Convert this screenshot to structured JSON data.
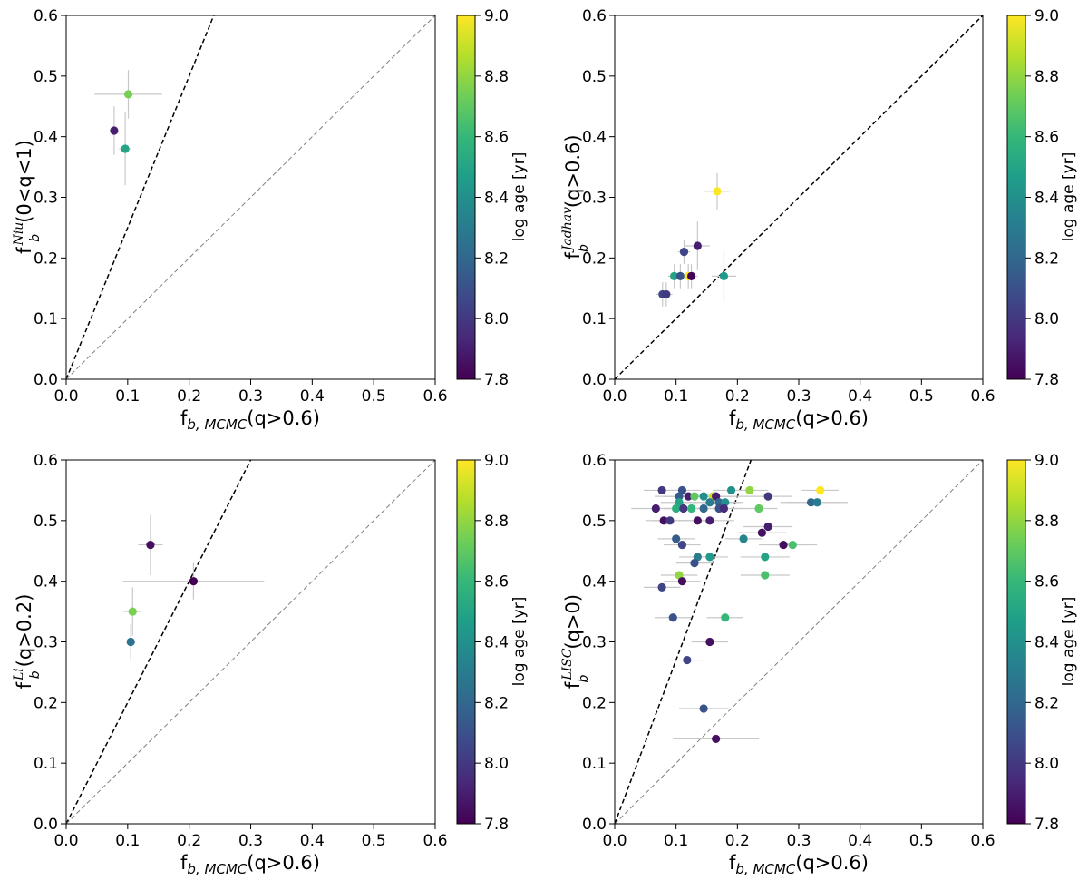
{
  "colorscale": [
    "#440154",
    "#482878",
    "#3e4989",
    "#31688e",
    "#26828e",
    "#1f9e89",
    "#35b779",
    "#6ece58",
    "#b5de2b",
    "#fde725"
  ],
  "chart_data": [
    {
      "type": "scatter",
      "id": "niu",
      "ylabel_base": "f",
      "ylabel_sup": "Niu",
      "ylabel_sub": "b",
      "ylabel_cond": "(0<q<1)",
      "xlabel_base": "f",
      "xlabel_sub": "b, MCMC",
      "xlabel_cond": "(q>0.6)",
      "xlim": [
        0,
        0.6
      ],
      "ylim": [
        0,
        0.6
      ],
      "xticks": [
        "0.0",
        "0.1",
        "0.2",
        "0.3",
        "0.4",
        "0.5",
        "0.6"
      ],
      "yticks": [
        "0.0",
        "0.1",
        "0.2",
        "0.3",
        "0.4",
        "0.5",
        "0.6"
      ],
      "lines": [
        {
          "slope": 2.5,
          "color": "#000000",
          "style": "dashed"
        },
        {
          "slope": 1.0,
          "color": "#808080",
          "style": "dashed"
        }
      ],
      "colorbar": {
        "label": "log age [yr]",
        "range": [
          7.8,
          9.0
        ],
        "ticks": [
          "7.8",
          "8.0",
          "8.2",
          "8.4",
          "8.6",
          "8.8",
          "9.0"
        ]
      },
      "points": [
        {
          "x": 0.078,
          "y": 0.41,
          "xerr": 0.005,
          "yerr": 0.04,
          "c": 7.9
        },
        {
          "x": 0.101,
          "y": 0.47,
          "xerr": 0.055,
          "yerr": 0.04,
          "c": 8.75
        },
        {
          "x": 0.096,
          "y": 0.38,
          "xerr": 0.01,
          "yerr": 0.06,
          "c": 8.5
        }
      ]
    },
    {
      "type": "scatter",
      "id": "jadhav",
      "ylabel_base": "f",
      "ylabel_sup": "Jadhav",
      "ylabel_sub": "b",
      "ylabel_cond": "(q>0.6)",
      "xlabel_base": "f",
      "xlabel_sub": "b, MCMC",
      "xlabel_cond": "(q>0.6)",
      "xlim": [
        0,
        0.6
      ],
      "ylim": [
        0,
        0.6
      ],
      "xticks": [
        "0.0",
        "0.1",
        "0.2",
        "0.3",
        "0.4",
        "0.5",
        "0.6"
      ],
      "yticks": [
        "0.0",
        "0.1",
        "0.2",
        "0.3",
        "0.4",
        "0.5",
        "0.6"
      ],
      "lines": [
        {
          "slope": 1.0,
          "color": "#000000",
          "style": "dashed"
        }
      ],
      "colorbar": {
        "label": "log age [yr]",
        "range": [
          7.8,
          9.0
        ],
        "ticks": [
          "7.8",
          "8.0",
          "8.2",
          "8.4",
          "8.6",
          "8.8",
          "9.0"
        ]
      },
      "points": [
        {
          "x": 0.167,
          "y": 0.31,
          "xerr": 0.02,
          "yerr": 0.03,
          "c": 9.0
        },
        {
          "x": 0.135,
          "y": 0.22,
          "xerr": 0.02,
          "yerr": 0.04,
          "c": 7.9
        },
        {
          "x": 0.113,
          "y": 0.21,
          "xerr": 0.01,
          "yerr": 0.02,
          "c": 8.05
        },
        {
          "x": 0.097,
          "y": 0.17,
          "xerr": 0.01,
          "yerr": 0.02,
          "c": 8.5
        },
        {
          "x": 0.107,
          "y": 0.17,
          "xerr": 0.01,
          "yerr": 0.02,
          "c": 8.1
        },
        {
          "x": 0.12,
          "y": 0.17,
          "xerr": 0.01,
          "yerr": 0.02,
          "c": 9.0
        },
        {
          "x": 0.125,
          "y": 0.17,
          "xerr": 0.01,
          "yerr": 0.02,
          "c": 7.8
        },
        {
          "x": 0.178,
          "y": 0.17,
          "xerr": 0.02,
          "yerr": 0.04,
          "c": 8.45
        },
        {
          "x": 0.078,
          "y": 0.14,
          "xerr": 0.01,
          "yerr": 0.02,
          "c": 8.05
        },
        {
          "x": 0.084,
          "y": 0.14,
          "xerr": 0.01,
          "yerr": 0.02,
          "c": 8.0
        }
      ]
    },
    {
      "type": "scatter",
      "id": "li",
      "ylabel_base": "f",
      "ylabel_sup": "Li",
      "ylabel_sub": "b",
      "ylabel_cond": "(q>0.2)",
      "xlabel_base": "f",
      "xlabel_sub": "b, MCMC",
      "xlabel_cond": "(q>0.6)",
      "xlim": [
        0,
        0.6
      ],
      "ylim": [
        0,
        0.6
      ],
      "xticks": [
        "0.0",
        "0.1",
        "0.2",
        "0.3",
        "0.4",
        "0.5",
        "0.6"
      ],
      "yticks": [
        "0.0",
        "0.1",
        "0.2",
        "0.3",
        "0.4",
        "0.5",
        "0.6"
      ],
      "lines": [
        {
          "slope": 2.0,
          "color": "#000000",
          "style": "dashed"
        },
        {
          "slope": 1.0,
          "color": "#808080",
          "style": "dashed"
        }
      ],
      "colorbar": {
        "label": "log age [yr]",
        "range": [
          7.8,
          9.0
        ],
        "ticks": [
          "7.8",
          "8.0",
          "8.2",
          "8.4",
          "8.6",
          "8.8",
          "9.0"
        ]
      },
      "points": [
        {
          "x": 0.137,
          "y": 0.46,
          "xerr": 0.02,
          "yerr": 0.05,
          "c": 7.85
        },
        {
          "x": 0.207,
          "y": 0.4,
          "xerr": 0.115,
          "yerr": 0.03,
          "c": 7.8
        },
        {
          "x": 0.108,
          "y": 0.35,
          "xerr": 0.015,
          "yerr": 0.04,
          "c": 8.75
        },
        {
          "x": 0.105,
          "y": 0.3,
          "xerr": 0.005,
          "yerr": 0.03,
          "c": 8.25
        }
      ]
    },
    {
      "type": "scatter",
      "id": "lisc",
      "ylabel_base": "f",
      "ylabel_sup": "LISC",
      "ylabel_sub": "b",
      "ylabel_cond": "(q>0)",
      "xlabel_base": "f",
      "xlabel_sub": "b, MCMC",
      "xlabel_cond": "(q>0.6)",
      "xlim": [
        0,
        0.6
      ],
      "ylim": [
        0,
        0.6
      ],
      "xticks": [
        "0.0",
        "0.1",
        "0.2",
        "0.3",
        "0.4",
        "0.5",
        "0.6"
      ],
      "yticks": [
        "0.0",
        "0.1",
        "0.2",
        "0.3",
        "0.4",
        "0.5",
        "0.6"
      ],
      "lines": [
        {
          "slope": 2.7,
          "color": "#000000",
          "style": "dashed"
        },
        {
          "slope": 1.0,
          "color": "#808080",
          "style": "dashed"
        }
      ],
      "colorbar": {
        "label": "log age [yr]",
        "range": [
          7.8,
          9.0
        ],
        "ticks": [
          "7.8",
          "8.0",
          "8.2",
          "8.4",
          "8.6",
          "8.8",
          "9.0"
        ]
      },
      "points": [
        {
          "x": 0.077,
          "y": 0.55,
          "xerr": 0.03,
          "yerr": 0,
          "c": 8.0
        },
        {
          "x": 0.11,
          "y": 0.55,
          "xerr": 0.03,
          "yerr": 0,
          "c": 8.1
        },
        {
          "x": 0.19,
          "y": 0.55,
          "xerr": 0.03,
          "yerr": 0,
          "c": 8.4
        },
        {
          "x": 0.22,
          "y": 0.55,
          "xerr": 0.03,
          "yerr": 0,
          "c": 8.8
        },
        {
          "x": 0.335,
          "y": 0.55,
          "xerr": 0.03,
          "yerr": 0,
          "c": 9.0
        },
        {
          "x": 0.105,
          "y": 0.54,
          "xerr": 0.04,
          "yerr": 0,
          "c": 8.15
        },
        {
          "x": 0.12,
          "y": 0.54,
          "xerr": 0.04,
          "yerr": 0,
          "c": 7.9
        },
        {
          "x": 0.13,
          "y": 0.54,
          "xerr": 0.05,
          "yerr": 0,
          "c": 8.7
        },
        {
          "x": 0.145,
          "y": 0.54,
          "xerr": 0.03,
          "yerr": 0,
          "c": 8.4
        },
        {
          "x": 0.16,
          "y": 0.54,
          "xerr": 0.05,
          "yerr": 0,
          "c": 8.9
        },
        {
          "x": 0.165,
          "y": 0.54,
          "xerr": 0.03,
          "yerr": 0,
          "c": 7.9
        },
        {
          "x": 0.25,
          "y": 0.54,
          "xerr": 0.04,
          "yerr": 0,
          "c": 8.0
        },
        {
          "x": 0.105,
          "y": 0.53,
          "xerr": 0.03,
          "yerr": 0,
          "c": 8.5
        },
        {
          "x": 0.155,
          "y": 0.53,
          "xerr": 0.05,
          "yerr": 0,
          "c": 8.3
        },
        {
          "x": 0.17,
          "y": 0.53,
          "xerr": 0.03,
          "yerr": 0,
          "c": 8.2
        },
        {
          "x": 0.18,
          "y": 0.53,
          "xerr": 0.03,
          "yerr": 0,
          "c": 8.4
        },
        {
          "x": 0.32,
          "y": 0.53,
          "xerr": 0.05,
          "yerr": 0,
          "c": 8.2
        },
        {
          "x": 0.33,
          "y": 0.53,
          "xerr": 0.05,
          "yerr": 0,
          "c": 8.3
        },
        {
          "x": 0.067,
          "y": 0.52,
          "xerr": 0.04,
          "yerr": 0,
          "c": 7.9
        },
        {
          "x": 0.1,
          "y": 0.52,
          "xerr": 0.04,
          "yerr": 0,
          "c": 8.55
        },
        {
          "x": 0.112,
          "y": 0.52,
          "xerr": 0.03,
          "yerr": 0,
          "c": 8.0
        },
        {
          "x": 0.125,
          "y": 0.52,
          "xerr": 0.03,
          "yerr": 0,
          "c": 8.6
        },
        {
          "x": 0.145,
          "y": 0.52,
          "xerr": 0.03,
          "yerr": 0,
          "c": 8.2
        },
        {
          "x": 0.17,
          "y": 0.52,
          "xerr": 0.03,
          "yerr": 0,
          "c": 8.1
        },
        {
          "x": 0.178,
          "y": 0.52,
          "xerr": 0.03,
          "yerr": 0,
          "c": 7.95
        },
        {
          "x": 0.235,
          "y": 0.52,
          "xerr": 0.03,
          "yerr": 0,
          "c": 8.7
        },
        {
          "x": 0.08,
          "y": 0.5,
          "xerr": 0.03,
          "yerr": 0,
          "c": 7.85
        },
        {
          "x": 0.09,
          "y": 0.5,
          "xerr": 0.03,
          "yerr": 0,
          "c": 8.0
        },
        {
          "x": 0.135,
          "y": 0.5,
          "xerr": 0.03,
          "yerr": 0,
          "c": 7.85
        },
        {
          "x": 0.155,
          "y": 0.5,
          "xerr": 0.04,
          "yerr": 0,
          "c": 7.9
        },
        {
          "x": 0.25,
          "y": 0.49,
          "xerr": 0.04,
          "yerr": 0,
          "c": 7.9
        },
        {
          "x": 0.24,
          "y": 0.48,
          "xerr": 0.04,
          "yerr": 0,
          "c": 7.85
        },
        {
          "x": 0.1,
          "y": 0.47,
          "xerr": 0.03,
          "yerr": 0,
          "c": 8.15
        },
        {
          "x": 0.21,
          "y": 0.47,
          "xerr": 0.03,
          "yerr": 0,
          "c": 8.35
        },
        {
          "x": 0.11,
          "y": 0.46,
          "xerr": 0.03,
          "yerr": 0,
          "c": 8.05
        },
        {
          "x": 0.275,
          "y": 0.46,
          "xerr": 0.04,
          "yerr": 0,
          "c": 7.85
        },
        {
          "x": 0.29,
          "y": 0.46,
          "xerr": 0.04,
          "yerr": 0,
          "c": 8.65
        },
        {
          "x": 0.135,
          "y": 0.44,
          "xerr": 0.03,
          "yerr": 0,
          "c": 8.3
        },
        {
          "x": 0.155,
          "y": 0.44,
          "xerr": 0.03,
          "yerr": 0,
          "c": 8.45
        },
        {
          "x": 0.245,
          "y": 0.44,
          "xerr": 0.04,
          "yerr": 0,
          "c": 8.5
        },
        {
          "x": 0.13,
          "y": 0.43,
          "xerr": 0.03,
          "yerr": 0,
          "c": 8.1
        },
        {
          "x": 0.105,
          "y": 0.41,
          "xerr": 0.03,
          "yerr": 0,
          "c": 8.8
        },
        {
          "x": 0.245,
          "y": 0.41,
          "xerr": 0.04,
          "yerr": 0,
          "c": 8.65
        },
        {
          "x": 0.11,
          "y": 0.4,
          "xerr": 0.03,
          "yerr": 0,
          "c": 7.85
        },
        {
          "x": 0.077,
          "y": 0.39,
          "xerr": 0.03,
          "yerr": 0,
          "c": 8.05
        },
        {
          "x": 0.095,
          "y": 0.34,
          "xerr": 0.03,
          "yerr": 0,
          "c": 8.1
        },
        {
          "x": 0.18,
          "y": 0.34,
          "xerr": 0.03,
          "yerr": 0,
          "c": 8.6
        },
        {
          "x": 0.155,
          "y": 0.3,
          "xerr": 0.03,
          "yerr": 0,
          "c": 7.85
        },
        {
          "x": 0.118,
          "y": 0.27,
          "xerr": 0.03,
          "yerr": 0,
          "c": 8.05
        },
        {
          "x": 0.145,
          "y": 0.19,
          "xerr": 0.04,
          "yerr": 0,
          "c": 8.1
        },
        {
          "x": 0.165,
          "y": 0.14,
          "xerr": 0.07,
          "yerr": 0,
          "c": 7.85
        }
      ]
    }
  ]
}
